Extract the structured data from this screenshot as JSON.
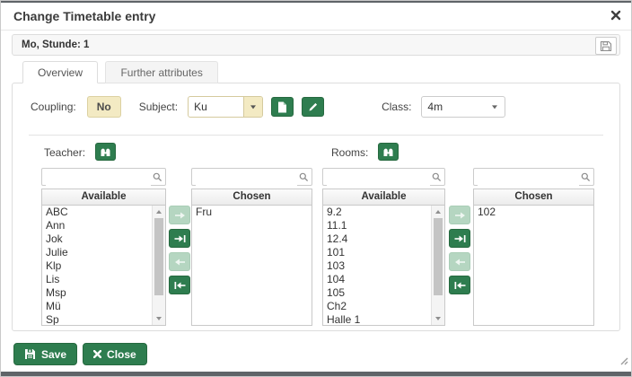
{
  "dialog": {
    "title": "Change Timetable entry",
    "subheader": {
      "text": "Mo, Stunde: 1"
    },
    "tabs": [
      {
        "label": "Overview",
        "active": true
      },
      {
        "label": "Further attributes",
        "active": false
      }
    ],
    "form": {
      "coupling_label": "Coupling:",
      "coupling_value": "No",
      "subject_label": "Subject:",
      "subject_value": "Ku",
      "class_label": "Class:",
      "class_value": "4m"
    },
    "teacher": {
      "label": "Teacher:",
      "available_header": "Available",
      "chosen_header": "Chosen",
      "available": [
        "ABC",
        "Ann",
        "Jok",
        "Julie",
        "Klp",
        "Lis",
        "Msp",
        "Mü",
        "Sp"
      ],
      "chosen": [
        "Fru"
      ]
    },
    "rooms": {
      "label": "Rooms:",
      "available_header": "Available",
      "chosen_header": "Chosen",
      "available": [
        "9.2",
        "11.1",
        "12.4",
        "101",
        "103",
        "104",
        "105",
        "Ch2",
        "Halle 1"
      ],
      "chosen": [
        "102"
      ]
    },
    "footer": {
      "save_label": "Save",
      "close_label": "Close"
    },
    "icons": {
      "titlebar": "close-icon",
      "subheader": "save-icon",
      "subject_buttons": [
        "new-document-icon",
        "edit-pencil-icon"
      ],
      "group_buttons": "binoculars-search-icon",
      "search_fields": "magnifier-icon",
      "transfer": [
        "arrow-right-icon",
        "arrow-right-all-icon",
        "arrow-left-icon",
        "arrow-left-all-icon"
      ],
      "footer": [
        "save-icon",
        "close-icon"
      ]
    },
    "colors": {
      "green": "#2e7d4f",
      "light_green": "#b5d6c1",
      "cream": "#f3eac3",
      "edge_gray": "#5f6468"
    }
  }
}
